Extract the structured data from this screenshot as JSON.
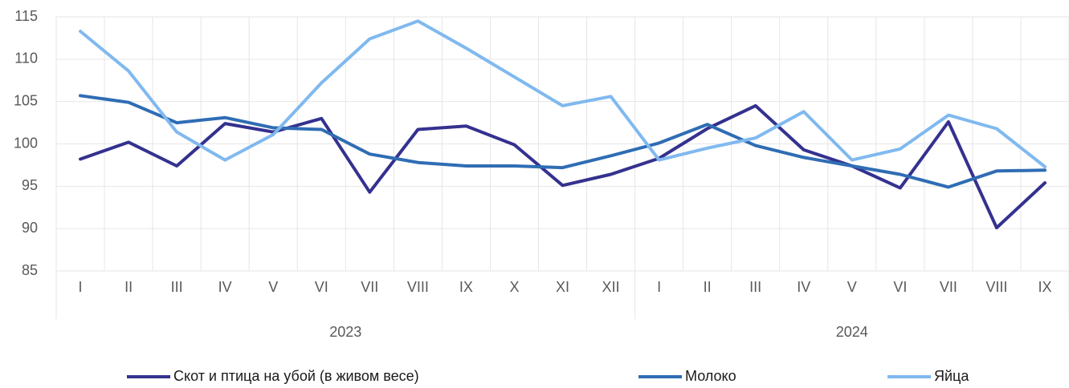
{
  "chart_data": {
    "type": "line",
    "categories": [
      "I",
      "II",
      "III",
      "IV",
      "V",
      "VI",
      "VII",
      "VIII",
      "IX",
      "X",
      "XI",
      "XII",
      "I",
      "II",
      "III",
      "IV",
      "V",
      "VI",
      "VII",
      "VIII",
      "IX"
    ],
    "groups": [
      {
        "label": "2023",
        "span": 12
      },
      {
        "label": "2024",
        "span": 9
      }
    ],
    "series": [
      {
        "name": "Скот и птица на убой (в живом весе)",
        "color": "#34318f",
        "values": [
          98.2,
          100.2,
          97.4,
          102.4,
          101.4,
          103.0,
          94.3,
          101.7,
          102.1,
          99.9,
          95.1,
          96.4,
          98.3,
          101.8,
          104.5,
          99.3,
          97.4,
          94.8,
          102.6,
          90.1,
          95.4
        ]
      },
      {
        "name": "Молоко",
        "color": "#2f6db4",
        "values": [
          105.7,
          104.9,
          102.5,
          103.1,
          101.9,
          101.7,
          98.8,
          97.8,
          97.4,
          97.4,
          97.2,
          98.6,
          100.1,
          102.3,
          99.8,
          98.4,
          97.4,
          96.4,
          94.9,
          96.8,
          96.9
        ]
      },
      {
        "name": "Яйца",
        "color": "#80b9ef",
        "values": [
          113.3,
          108.6,
          101.4,
          98.1,
          101.1,
          107.2,
          112.4,
          114.5,
          111.3,
          107.9,
          104.5,
          105.6,
          98.1,
          99.5,
          100.7,
          103.8,
          98.1,
          99.4,
          103.4,
          101.8,
          97.3
        ]
      }
    ],
    "ylim": [
      85,
      115
    ],
    "yticks": [
      85,
      90,
      95,
      100,
      105,
      110,
      115
    ],
    "grid": true,
    "legend": "bottom"
  }
}
